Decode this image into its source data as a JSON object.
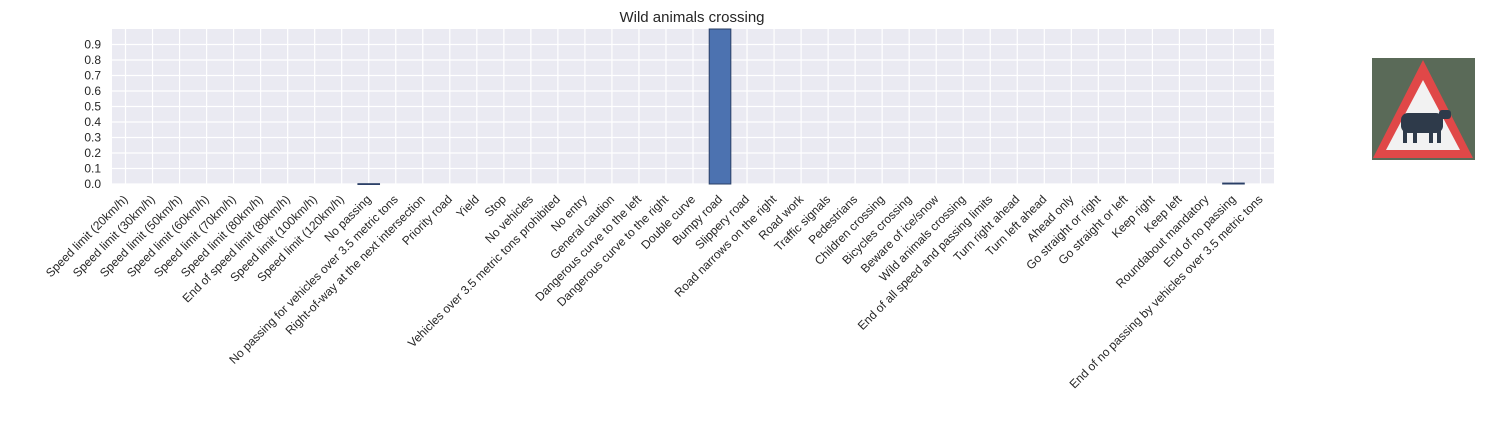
{
  "chart_data": {
    "type": "bar",
    "title": "Wild animals crossing",
    "xlabel": "",
    "ylabel": "",
    "ylim": [
      0,
      1.0
    ],
    "yticks": [
      0.0,
      0.1,
      0.2,
      0.3,
      0.4,
      0.5,
      0.6,
      0.7,
      0.8,
      0.9
    ],
    "grid": true,
    "colors": {
      "bar": "#4c72b0",
      "bar_edge": "#2a3f66",
      "plot_bg": "#eaeaf2",
      "grid": "#ffffff"
    },
    "categories": [
      "Speed limit (20km/h)",
      "Speed limit (30km/h)",
      "Speed limit (50km/h)",
      "Speed limit (60km/h)",
      "Speed limit (70km/h)",
      "Speed limit (80km/h)",
      "End of speed limit (80km/h)",
      "Speed limit (100km/h)",
      "Speed limit (120km/h)",
      "No passing",
      "No passing for vehicles over 3.5 metric tons",
      "Right-of-way at the next intersection",
      "Priority road",
      "Yield",
      "Stop",
      "No vehicles",
      "Vehicles over 3.5 metric tons prohibited",
      "No entry",
      "General caution",
      "Dangerous curve to the left",
      "Dangerous curve to the right",
      "Double curve",
      "Bumpy road",
      "Slippery road",
      "Road narrows on the right",
      "Road work",
      "Traffic signals",
      "Pedestrians",
      "Children crossing",
      "Bicycles crossing",
      "Beware of ice/snow",
      "Wild animals crossing",
      "End of all speed and passing limits",
      "Turn right ahead",
      "Turn left ahead",
      "Ahead only",
      "Go straight or right",
      "Go straight or left",
      "Keep right",
      "Keep left",
      "Roundabout mandatory",
      "End of no passing",
      "End of no passing by vehicles over 3.5 metric tons"
    ],
    "values": [
      0,
      0,
      0,
      0,
      0,
      0,
      0,
      0,
      0,
      0.002,
      0,
      0,
      0,
      0,
      0,
      0,
      0,
      0,
      0,
      0,
      0,
      0,
      1.0,
      0,
      0,
      0,
      0,
      0,
      0,
      0,
      0,
      0,
      0,
      0,
      0,
      0,
      0,
      0,
      0,
      0,
      0,
      0.006,
      0
    ]
  },
  "image_panel": {
    "icon": "wild-animals-crossing-sign-icon",
    "colors": {
      "border": "#e04848",
      "fill": "#f2f2f2",
      "animal": "#2e3a4a",
      "background": "#5a6a58"
    }
  }
}
